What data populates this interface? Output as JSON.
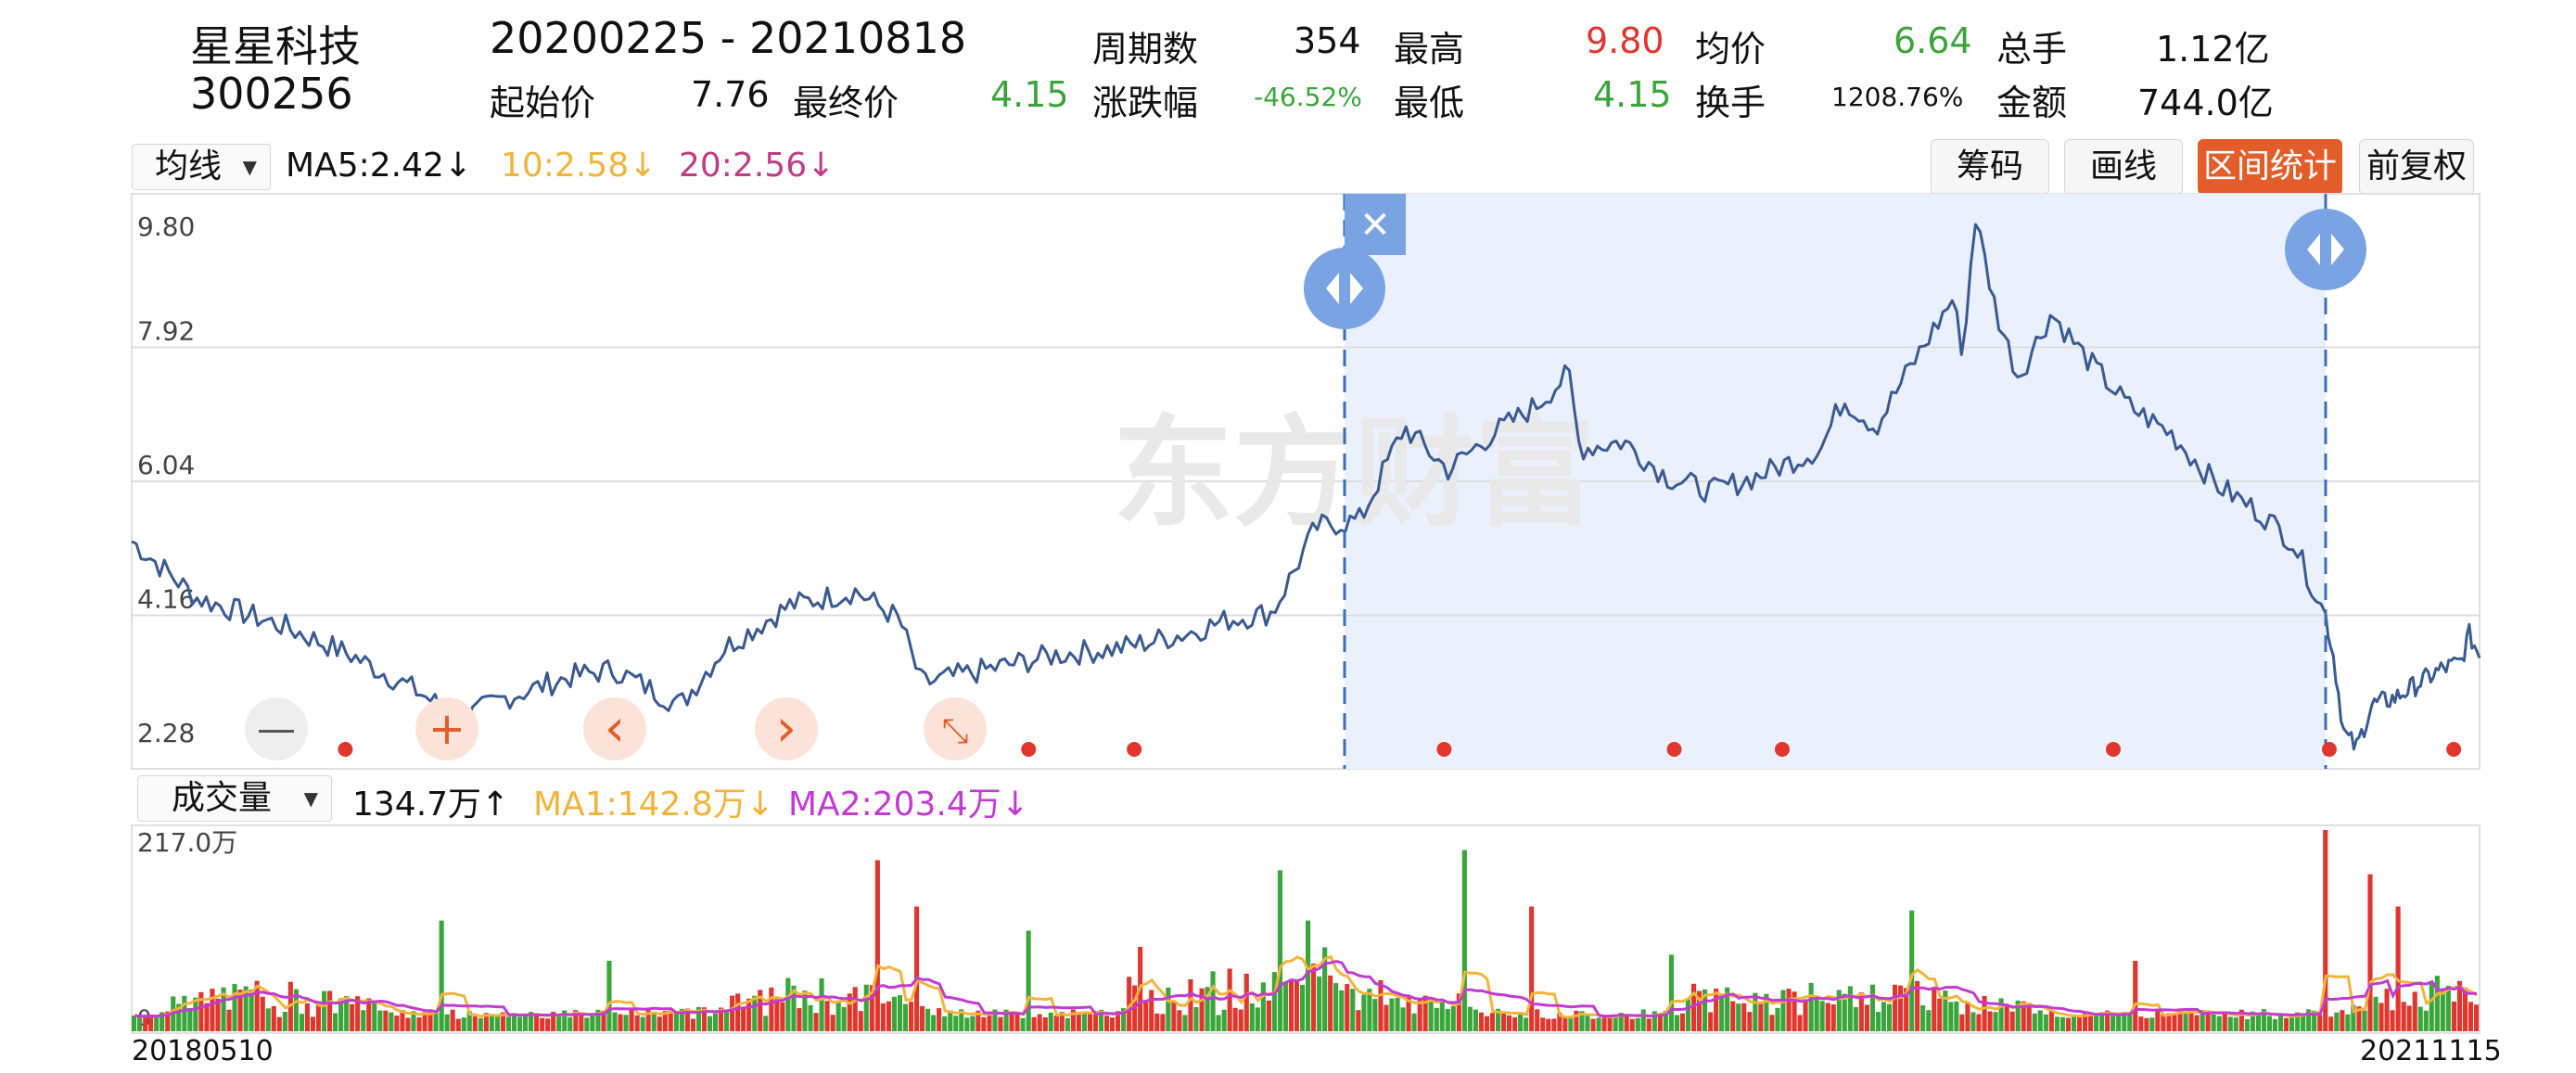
{
  "stock": {
    "name": "星星科技",
    "code": "300256"
  },
  "header": {
    "range": "20200225 - 20210818",
    "period_label": "周期数",
    "period_value": "354",
    "high_label": "最高",
    "high_value": "9.80",
    "avg_label": "均价",
    "avg_value": "6.64",
    "total_label": "总手",
    "total_value": "1.12亿",
    "start_label": "起始价",
    "start_value": "7.76",
    "final_label": "最终价",
    "final_value": "4.15",
    "change_label": "涨跌幅",
    "change_value": "-46.52%",
    "low_label": "最低",
    "low_value": "4.15",
    "turnover_label": "换手",
    "turnover_value": "1208.76%",
    "amount_label": "金额",
    "amount_value": "744.0亿"
  },
  "toolbar": {
    "ma_select": "均线",
    "ma5": "MA5:2.42↓",
    "ma10": "10:2.58↓",
    "ma20": "20:2.56↓",
    "buttons": [
      "筹码",
      "画线",
      "区间统计",
      "前复权"
    ],
    "active_button": "区间统计"
  },
  "price_chart": {
    "y_ticks": [
      "9.80",
      "7.92",
      "6.04",
      "4.16",
      "2.28"
    ],
    "watermark": "东方财富",
    "selection_close": "✕",
    "controls": {
      "minus": "—",
      "plus": "+",
      "prev": "‹",
      "next": "›",
      "shrink": "⤡"
    }
  },
  "volume": {
    "select": "成交量",
    "value": "134.7万↑",
    "ma1": "MA1:142.8万↓",
    "ma2": "MA2:203.4万↓",
    "y_max": "217.0万",
    "y_min": "0"
  },
  "dates": {
    "start": "20180510",
    "end": "20211115"
  },
  "colors": {
    "up": "#e0362d",
    "down": "#3aa53a",
    "price_line": "#3a5a92",
    "ma1": "#f2b43c",
    "ma2": "#c23bd3",
    "selection": "#eaf1fc",
    "accent": "#e35d2a"
  },
  "chart_data": {
    "type": "line",
    "x_range": [
      "20180510",
      "20211115"
    ],
    "ylim": [
      2.28,
      9.8
    ],
    "selection_range": [
      "20200225",
      "20210818"
    ],
    "price_keypoints": [
      [
        0,
        5.2
      ],
      [
        0.03,
        4.4
      ],
      [
        0.07,
        4.0
      ],
      [
        0.1,
        3.6
      ],
      [
        0.13,
        3.1
      ],
      [
        0.15,
        2.7
      ],
      [
        0.17,
        3.0
      ],
      [
        0.2,
        3.3
      ],
      [
        0.22,
        3.4
      ],
      [
        0.25,
        2.9
      ],
      [
        0.27,
        3.7
      ],
      [
        0.3,
        4.3
      ],
      [
        0.33,
        4.5
      ],
      [
        0.35,
        4.1
      ],
      [
        0.36,
        3.2
      ],
      [
        0.39,
        3.4
      ],
      [
        0.42,
        3.6
      ],
      [
        0.45,
        3.7
      ],
      [
        0.48,
        3.9
      ],
      [
        0.5,
        4.1
      ],
      [
        0.52,
        4.2
      ],
      [
        0.54,
        5.4
      ],
      [
        0.56,
        5.5
      ],
      [
        0.58,
        6.8
      ],
      [
        0.6,
        6.2
      ],
      [
        0.62,
        6.7
      ],
      [
        0.64,
        7.1
      ],
      [
        0.655,
        7.55
      ],
      [
        0.66,
        6.5
      ],
      [
        0.68,
        6.6
      ],
      [
        0.7,
        6.1
      ],
      [
        0.72,
        5.9
      ],
      [
        0.74,
        6.1
      ],
      [
        0.77,
        6.5
      ],
      [
        0.78,
        7.2
      ],
      [
        0.795,
        6.8
      ],
      [
        0.81,
        7.6
      ],
      [
        0.82,
        8.1
      ],
      [
        0.83,
        8.6
      ],
      [
        0.835,
        7.8
      ],
      [
        0.84,
        9.8
      ],
      [
        0.85,
        8.4
      ],
      [
        0.86,
        7.5
      ],
      [
        0.875,
        8.4
      ],
      [
        0.89,
        7.8
      ],
      [
        0.91,
        7.1
      ],
      [
        0.93,
        6.7
      ],
      [
        0.95,
        6.0
      ],
      [
        0.97,
        5.6
      ],
      [
        0.985,
        5.2
      ],
      [
        1.0,
        4.15
      ]
    ],
    "post_keypoints": [
      [
        0,
        4.15
      ],
      [
        0.05,
        3.6
      ],
      [
        0.12,
        2.5
      ],
      [
        0.2,
        2.3
      ],
      [
        0.3,
        2.9
      ],
      [
        0.45,
        3.0
      ],
      [
        0.6,
        3.2
      ],
      [
        0.75,
        3.4
      ],
      [
        0.88,
        3.5
      ],
      [
        0.93,
        3.9
      ],
      [
        1.0,
        3.6
      ]
    ],
    "markers_x": [
      0.091,
      0.138,
      0.276,
      0.282,
      0.382,
      0.427,
      0.559,
      0.657,
      0.703,
      0.844,
      0.936,
      0.989
    ]
  }
}
